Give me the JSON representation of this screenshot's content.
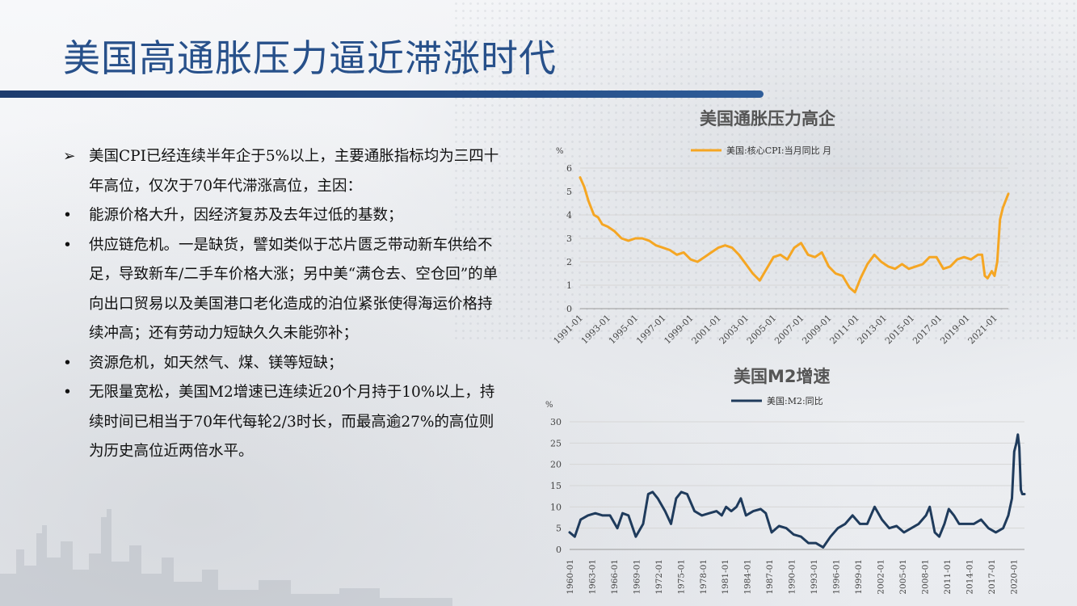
{
  "title": "美国高通胀压力逼近滞涨时代",
  "bullets": [
    {
      "marker": "➢",
      "text": "美国CPI已经连续半年企于5%以上，主要通胀指标均为三四十年高位，仅次于70年代滞涨高位，主因："
    },
    {
      "marker": "•",
      "text": "能源价格大升，因经济复苏及去年过低的基数；"
    },
    {
      "marker": "•",
      "text": "供应链危机。一是缺货，譬如类似于芯片匮乏带动新车供给不足，导致新车/二手车价格大涨；另中美“满仓去、空仓回”的单向出口贸易以及美国港口老化造成的泊位紧张使得海运价格持续冲高；还有劳动力短缺久久未能弥补；"
    },
    {
      "marker": "•",
      "text": "资源危机，如天然气、煤、镁等短缺；"
    },
    {
      "marker": "•",
      "text": "无限量宽松，美国M2增速已连续近20个月持于10%以上，持续时间已相当于70年代每轮2/3时长，而最高逾27%的高位则为历史高位近两倍水平。"
    }
  ],
  "chart_data": [
    {
      "type": "line",
      "title": "美国通胀压力高企",
      "ylabel": "%",
      "ylim": [
        0,
        6
      ],
      "yticks": [
        "0",
        "1",
        "2",
        "3",
        "4",
        "5",
        "6"
      ],
      "grid": true,
      "legend_position": "top",
      "color": "#f5a623",
      "xlim": [
        1991.0,
        2022.0
      ],
      "xtick_labels": [
        "1991-01",
        "1993-01",
        "1995-01",
        "1997-01",
        "1999-01",
        "2001-01",
        "2003-01",
        "2005-01",
        "2007-01",
        "2009-01",
        "2011-01",
        "2013-01",
        "2015-01",
        "2017-01",
        "2019-01",
        "2021-01"
      ],
      "series": [
        {
          "name": "美国:核心CPI:当月同比 月",
          "x": [
            1991.0,
            1991.3,
            1991.6,
            1992.0,
            1992.3,
            1992.6,
            1993.0,
            1993.5,
            1994.0,
            1994.5,
            1995.0,
            1995.5,
            1996.0,
            1996.5,
            1997.0,
            1997.5,
            1998.0,
            1998.5,
            1999.0,
            1999.5,
            2000.0,
            2000.5,
            2001.0,
            2001.5,
            2002.0,
            2002.5,
            2003.0,
            2003.5,
            2004.0,
            2004.5,
            2005.0,
            2005.5,
            2006.0,
            2006.5,
            2007.0,
            2007.5,
            2008.0,
            2008.5,
            2009.0,
            2009.5,
            2010.0,
            2010.5,
            2010.9,
            2011.3,
            2011.8,
            2012.3,
            2012.8,
            2013.3,
            2013.8,
            2014.3,
            2014.8,
            2015.3,
            2015.8,
            2016.3,
            2016.8,
            2017.3,
            2017.8,
            2018.3,
            2018.8,
            2019.3,
            2019.8,
            2020.1,
            2020.3,
            2020.5,
            2020.8,
            2021.0,
            2021.2,
            2021.4,
            2021.6,
            2021.8,
            2022.0
          ],
          "values": [
            5.6,
            5.2,
            4.6,
            4.0,
            3.9,
            3.6,
            3.5,
            3.3,
            3.0,
            2.9,
            3.0,
            3.0,
            2.9,
            2.7,
            2.6,
            2.5,
            2.3,
            2.4,
            2.1,
            2.0,
            2.2,
            2.4,
            2.6,
            2.7,
            2.6,
            2.3,
            1.9,
            1.5,
            1.2,
            1.7,
            2.2,
            2.3,
            2.1,
            2.6,
            2.8,
            2.3,
            2.2,
            2.4,
            1.8,
            1.5,
            1.4,
            0.9,
            0.7,
            1.3,
            1.9,
            2.3,
            2.0,
            1.8,
            1.7,
            1.9,
            1.7,
            1.8,
            1.9,
            2.2,
            2.2,
            1.7,
            1.8,
            2.1,
            2.2,
            2.1,
            2.3,
            2.3,
            1.4,
            1.3,
            1.6,
            1.4,
            2.0,
            3.8,
            4.3,
            4.6,
            4.9
          ]
        }
      ]
    },
    {
      "type": "line",
      "title": "美国M2增速",
      "ylabel": "%",
      "ylim": [
        0,
        30
      ],
      "yticks": [
        "0",
        "5",
        "10",
        "15",
        "20",
        "25",
        "30"
      ],
      "grid": true,
      "legend_position": "top",
      "color": "#1f3b5c",
      "xlim": [
        1960.0,
        2021.9
      ],
      "xtick_labels": [
        "1960-01",
        "1963-01",
        "1966-01",
        "1969-01",
        "1972-01",
        "1975-01",
        "1978-01",
        "1981-01",
        "1984-01",
        "1987-01",
        "1990-01",
        "1993-01",
        "1996-01",
        "1999-01",
        "2002-01",
        "2005-01",
        "2008-01",
        "2011-01",
        "2014-01",
        "2017-01",
        "2020-01"
      ],
      "series": [
        {
          "name": "美国:M2:同比",
          "x": [
            1960.0,
            1960.7,
            1961.5,
            1962.5,
            1963.5,
            1964.5,
            1965.5,
            1966.5,
            1967.2,
            1968.0,
            1969.0,
            1970.0,
            1970.7,
            1971.3,
            1972.0,
            1973.0,
            1973.8,
            1974.5,
            1975.2,
            1976.0,
            1977.0,
            1978.0,
            1979.0,
            1980.0,
            1980.7,
            1981.3,
            1982.0,
            1982.7,
            1983.3,
            1984.0,
            1985.0,
            1986.0,
            1986.7,
            1987.5,
            1988.5,
            1989.5,
            1990.5,
            1991.5,
            1992.5,
            1993.5,
            1994.5,
            1995.5,
            1996.5,
            1997.5,
            1998.5,
            1999.5,
            2000.5,
            2001.5,
            2002.5,
            2003.5,
            2004.5,
            2005.5,
            2006.5,
            2007.5,
            2008.5,
            2009.0,
            2009.7,
            2010.3,
            2011.0,
            2011.6,
            2012.3,
            2013.0,
            2014.0,
            2015.0,
            2016.0,
            2017.0,
            2018.0,
            2019.0,
            2019.7,
            2020.2,
            2020.5,
            2020.8,
            2021.0,
            2021.2,
            2021.4,
            2021.6,
            2021.9
          ],
          "values": [
            4.0,
            3.0,
            7.0,
            8.0,
            8.5,
            8.0,
            8.0,
            5.0,
            8.5,
            8.0,
            3.0,
            6.0,
            13.0,
            13.5,
            12.0,
            9.0,
            6.0,
            12.0,
            13.5,
            13.0,
            9.0,
            8.0,
            8.5,
            9.0,
            8.0,
            10.0,
            9.0,
            10.0,
            12.0,
            8.0,
            9.0,
            9.5,
            8.5,
            4.0,
            5.5,
            5.0,
            3.5,
            3.0,
            1.5,
            1.5,
            0.5,
            3.0,
            5.0,
            6.0,
            8.0,
            6.0,
            6.0,
            10.0,
            7.0,
            5.0,
            5.5,
            4.0,
            5.0,
            6.0,
            8.0,
            10.0,
            4.0,
            3.0,
            6.0,
            9.5,
            8.0,
            6.0,
            6.0,
            6.0,
            7.0,
            5.0,
            4.0,
            5.0,
            8.0,
            12.0,
            23.0,
            25.0,
            27.0,
            24.0,
            14.0,
            13.0,
            13.0
          ]
        }
      ]
    }
  ]
}
